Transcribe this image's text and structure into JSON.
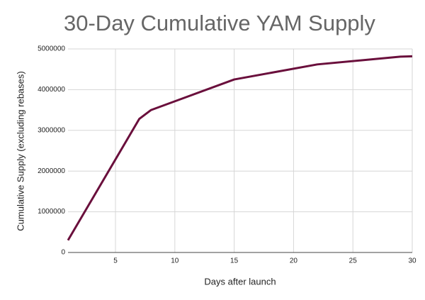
{
  "chart_data": {
    "type": "line",
    "title": "30-Day Cumulative YAM Supply",
    "x_label": "Days after launch",
    "y_label": "Cumulative Supply (excluding rebases)",
    "x": [
      1,
      7,
      8,
      15,
      22,
      29,
      30
    ],
    "series": [
      {
        "color": "#6a0f3c",
        "values": [
          300000,
          3280000,
          3500000,
          4250000,
          4620000,
          4810000,
          4820000
        ]
      }
    ],
    "xlim": [
      1,
      30
    ],
    "xticks": [
      5,
      10,
      15,
      20,
      25,
      30
    ],
    "ylim": [
      0,
      5000000
    ],
    "yticks": [
      0,
      1000000,
      2000000,
      3000000,
      4000000,
      5000000
    ],
    "grid": true
  }
}
